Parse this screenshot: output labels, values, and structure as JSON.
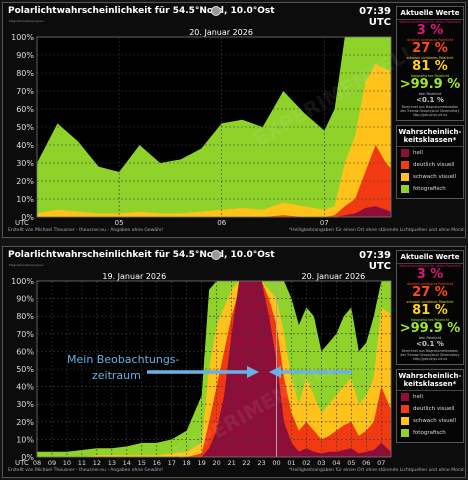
{
  "title": "Polarlichtwahrscheinlichkeit für 54.5°Nord, 10.0°Ost",
  "time": "07:39 UTC",
  "magnetometer_label": "Magnetometergruppen",
  "utc_label": "UTC",
  "footer_left": "Erstellt von Michael Theusner - theusner.eu - Angaben ohne Gewähr!",
  "footer_right": "*Helligkeitsangaben für einen Ort ohne störende Lichtquellen und ohne Mond.",
  "watermark": "EXPERIMENTELL",
  "annotation": {
    "line1": "Mein Beobachtungs-",
    "line2": "zeitraum"
  },
  "sidebar": {
    "current_title": "Aktuelle Werte",
    "classes_title": "Wahrscheinlich-\nkeitsklassen*",
    "values": [
      {
        "label": "Wahrscheinlichkeit für helles Polarlicht",
        "value": "3 %",
        "color": "#e0147a"
      },
      {
        "label": "deutlich sichtbares Polarlicht",
        "value": "27 %",
        "color": "#ff4a1a"
      },
      {
        "label": "schwach sichtbares Polarlicht",
        "value": "81 %",
        "color": "#ffd21a"
      },
      {
        "label": "fotografisches Polarlicht",
        "value": ">99.9 %",
        "color": "#a0e830"
      },
      {
        "label": "kein Polarlicht",
        "value": "<0.1 %",
        "color": "#cccccc"
      }
    ],
    "note": "Berechnet aus Magnetometerdaten des Tromsø Geophysical Observatory http://geo.phys.uit.no",
    "legend": [
      {
        "label": "hell",
        "color": "#8e0e3a"
      },
      {
        "label": "deutlich visuell",
        "color": "#f23a12"
      },
      {
        "label": "schwach visuell",
        "color": "#ffc21a"
      },
      {
        "label": "fotografisch",
        "color": "#8ed22a"
      }
    ]
  },
  "charts": [
    {
      "date_labels": [
        "20. Januar 2026"
      ],
      "x_tick_labels": [
        "05",
        "06",
        "07"
      ]
    },
    {
      "date_labels": [
        "19. Januar 2026",
        "20. Januar 2026"
      ],
      "x_tick_labels": [
        "08",
        "09",
        "10",
        "11",
        "12",
        "13",
        "14",
        "15",
        "16",
        "17",
        "18",
        "19",
        "20",
        "21",
        "22",
        "23",
        "00",
        "01",
        "02",
        "03",
        "04",
        "05",
        "06",
        "07"
      ]
    }
  ],
  "chart_data": [
    {
      "type": "area",
      "xlabel": "UTC",
      "ylim": [
        0,
        100
      ],
      "yticks": [
        "0%",
        "10%",
        "20%",
        "30%",
        "40%",
        "50%",
        "60%",
        "70%",
        "80%",
        "90%",
        "100%"
      ],
      "x_hours": [
        4.2,
        4.4,
        4.6,
        4.8,
        5.0,
        5.2,
        5.4,
        5.6,
        5.8,
        6.0,
        6.2,
        6.4,
        6.6,
        6.8,
        7.0,
        7.1,
        7.2,
        7.3,
        7.4,
        7.5,
        7.6,
        7.65
      ],
      "x_range": [
        4.2,
        7.65
      ],
      "series": [
        {
          "name": "fotografisch",
          "values": [
            30,
            52,
            42,
            28,
            25,
            40,
            30,
            32,
            38,
            52,
            54,
            50,
            70,
            58,
            48,
            60,
            100,
            100,
            100,
            100,
            100,
            100
          ]
        },
        {
          "name": "schwach visuell",
          "values": [
            2,
            4,
            3,
            2,
            2,
            3,
            2,
            2,
            3,
            4,
            5,
            4,
            8,
            6,
            4,
            6,
            30,
            45,
            75,
            85,
            82,
            81
          ]
        },
        {
          "name": "deutlich visuell",
          "values": [
            0,
            0,
            0,
            0,
            0,
            0,
            0,
            0,
            0,
            0,
            0,
            0,
            1,
            0,
            0,
            1,
            6,
            10,
            25,
            40,
            30,
            27
          ]
        },
        {
          "name": "hell",
          "values": [
            0,
            0,
            0,
            0,
            0,
            0,
            0,
            0,
            0,
            0,
            0,
            0,
            0,
            0,
            0,
            0,
            1,
            2,
            5,
            6,
            4,
            3
          ]
        }
      ]
    },
    {
      "type": "area",
      "xlabel": "UTC",
      "ylim": [
        0,
        100
      ],
      "yticks": [
        "0%",
        "10%",
        "20%",
        "30%",
        "40%",
        "50%",
        "60%",
        "70%",
        "80%",
        "90%",
        "100%"
      ],
      "x_hours": [
        8,
        9,
        10,
        11,
        12,
        13,
        14,
        15,
        16,
        17,
        18,
        19,
        19.5,
        20,
        20.5,
        21,
        21.5,
        22,
        22.5,
        23,
        23.5,
        24,
        24.5,
        25,
        25.5,
        26,
        26.5,
        27,
        27.5,
        28,
        28.5,
        29,
        29.5,
        30,
        30.5,
        31,
        31.65
      ],
      "x_range": [
        8,
        31.65
      ],
      "series": [
        {
          "name": "fotografisch",
          "values": [
            3,
            3,
            3,
            4,
            5,
            5,
            6,
            8,
            8,
            10,
            15,
            35,
            95,
            100,
            100,
            100,
            100,
            100,
            100,
            100,
            100,
            100,
            100,
            90,
            75,
            85,
            80,
            60,
            65,
            70,
            80,
            85,
            60,
            65,
            80,
            100,
            100
          ]
        },
        {
          "name": "schwach visuell",
          "values": [
            0,
            0,
            0,
            0,
            1,
            1,
            1,
            1,
            1,
            2,
            3,
            8,
            50,
            75,
            85,
            95,
            100,
            100,
            100,
            100,
            95,
            90,
            70,
            45,
            30,
            45,
            35,
            25,
            30,
            35,
            40,
            45,
            30,
            35,
            45,
            85,
            81
          ]
        },
        {
          "name": "deutlich visuell",
          "values": [
            0,
            0,
            0,
            0,
            0,
            0,
            0,
            0,
            0,
            0,
            0,
            2,
            20,
            40,
            60,
            80,
            95,
            100,
            100,
            100,
            90,
            75,
            45,
            25,
            15,
            20,
            15,
            10,
            12,
            15,
            18,
            20,
            12,
            15,
            20,
            40,
            27
          ]
        },
        {
          "name": "hell",
          "values": [
            0,
            0,
            0,
            0,
            0,
            0,
            0,
            0,
            0,
            0,
            0,
            0,
            5,
            15,
            35,
            70,
            100,
            100,
            100,
            100,
            80,
            55,
            20,
            8,
            3,
            5,
            3,
            2,
            3,
            3,
            4,
            5,
            2,
            3,
            4,
            8,
            3
          ]
        }
      ]
    }
  ]
}
